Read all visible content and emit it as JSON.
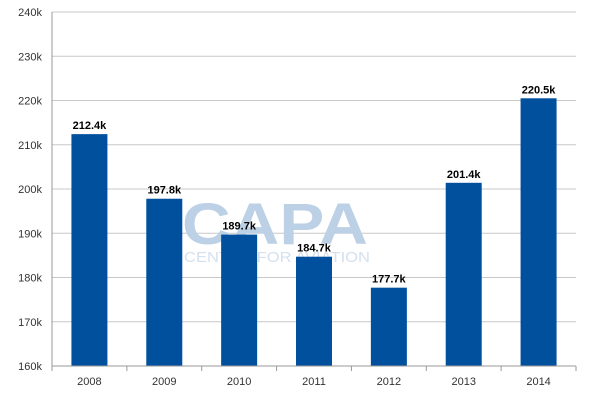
{
  "chart_data": {
    "type": "bar",
    "categories": [
      "2008",
      "2009",
      "2010",
      "2011",
      "2012",
      "2013",
      "2014"
    ],
    "values": [
      212.4,
      197.8,
      189.7,
      184.7,
      177.7,
      201.4,
      220.5
    ],
    "data_labels": [
      "212.4k",
      "197.8k",
      "189.7k",
      "184.7k",
      "177.7k",
      "201.4k",
      "220.5k"
    ],
    "y_ticks": [
      160,
      170,
      180,
      190,
      200,
      210,
      220,
      230,
      240
    ],
    "y_tick_labels": [
      "160k",
      "170k",
      "180k",
      "190k",
      "200k",
      "210k",
      "220k",
      "230k",
      "240k"
    ],
    "ylim": [
      160,
      240
    ],
    "title": "",
    "xlabel": "",
    "ylabel": "",
    "grid": true,
    "legend": "none",
    "bar_color": "#00509e",
    "watermark": {
      "main": "CAPA",
      "sub": "CENTRE FOR AVIATION"
    }
  }
}
